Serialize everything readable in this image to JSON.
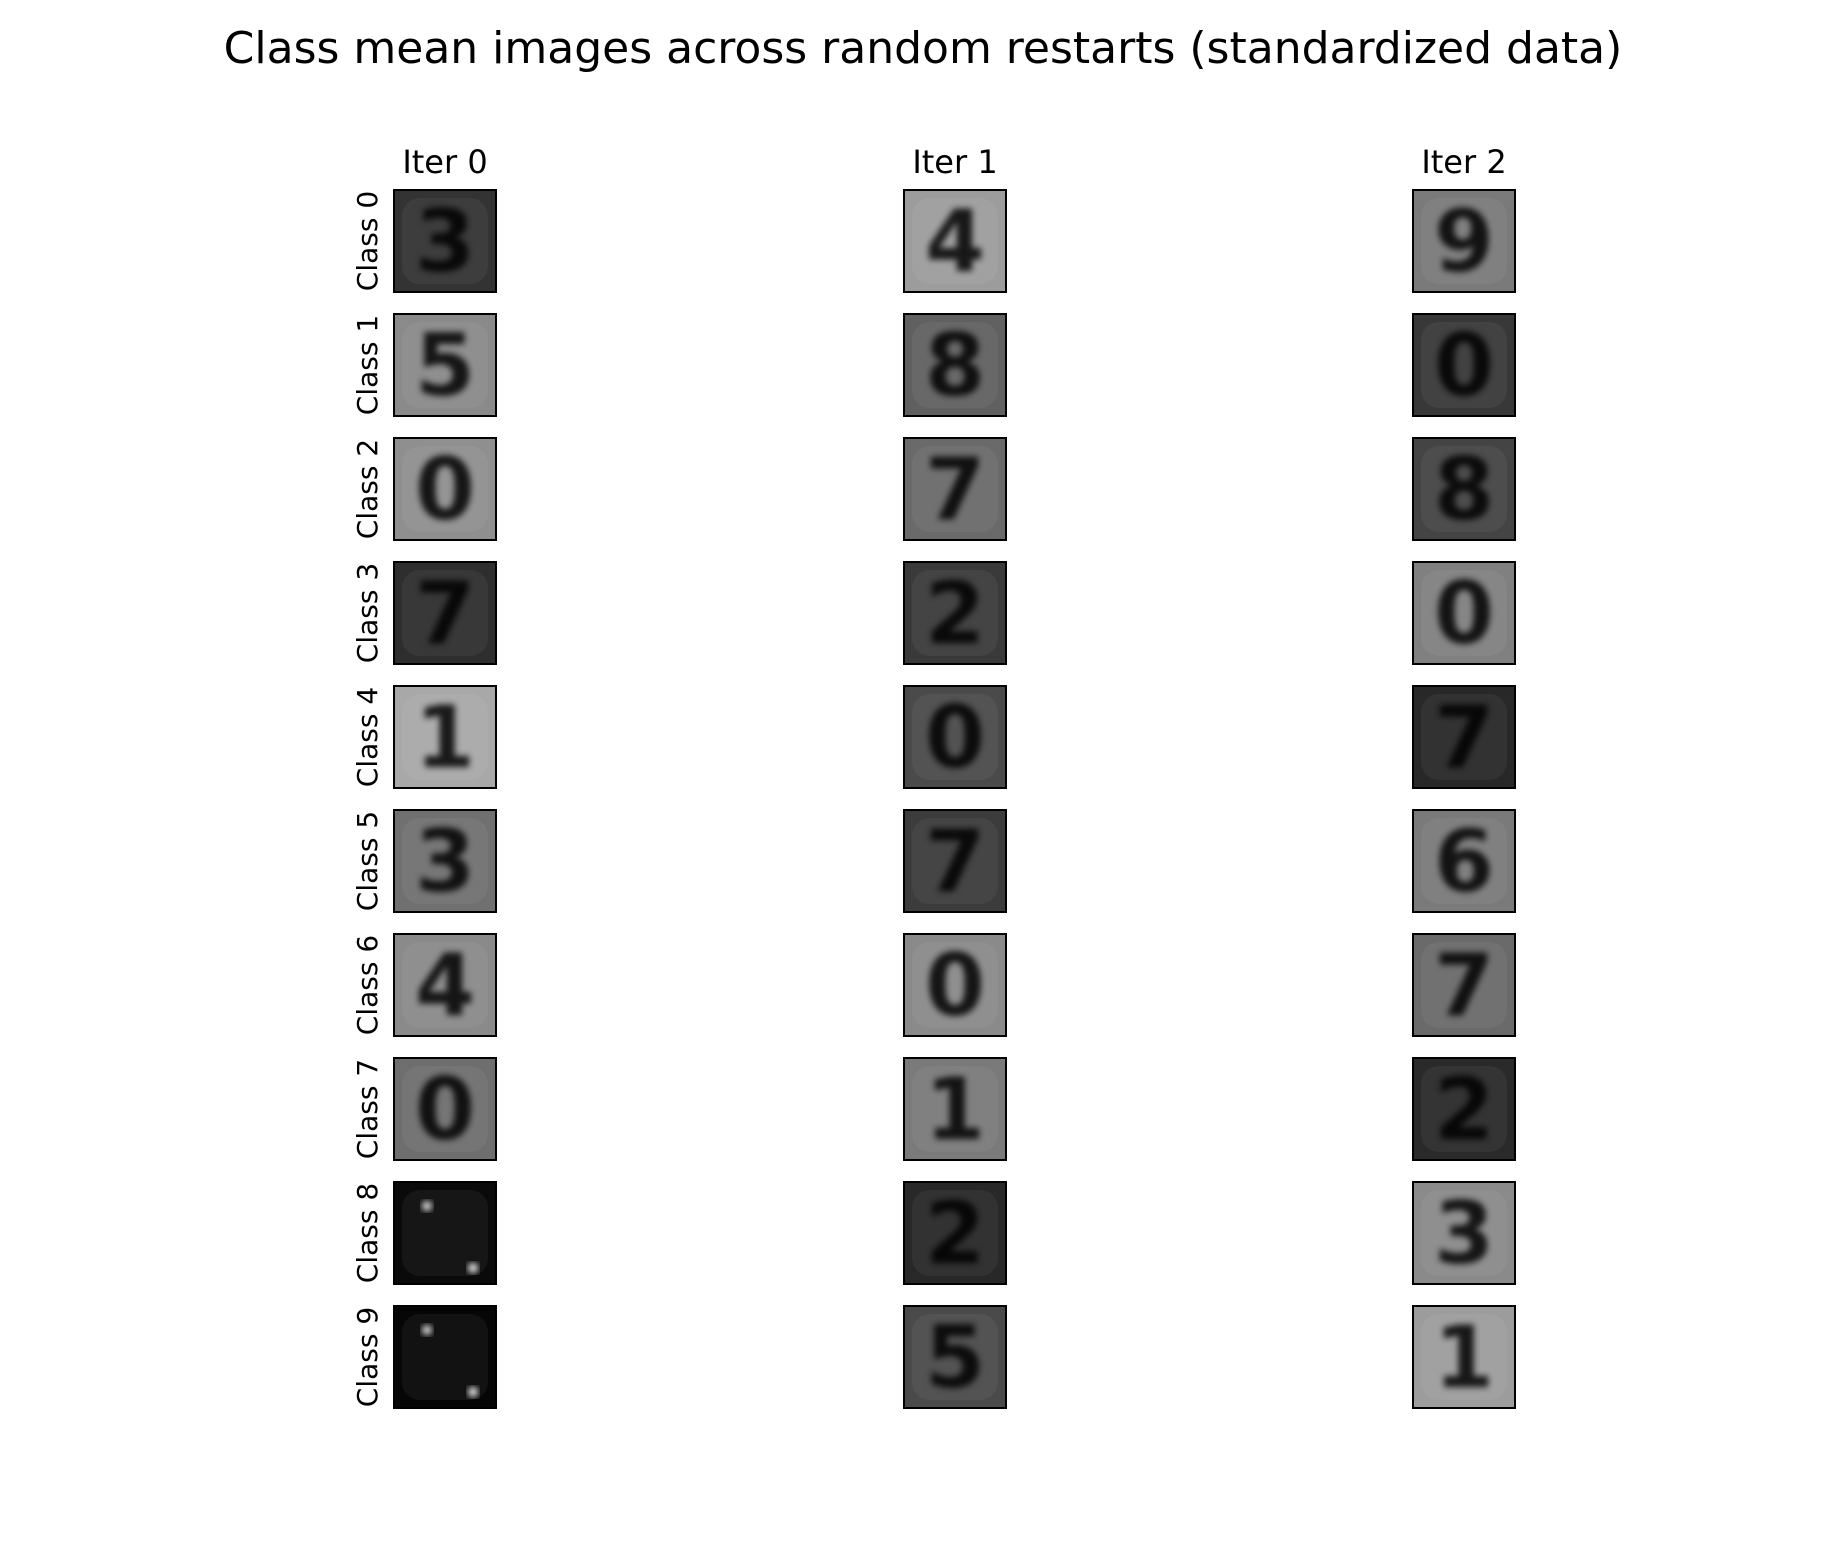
{
  "chart_data": {
    "type": "image_grid",
    "title": "Class mean images across random restarts (standardized data)",
    "columns": [
      {
        "label": "Iter 0",
        "digits": [
          "3",
          "5",
          "0",
          "7",
          "1",
          "3",
          "4",
          "0",
          "",
          ""
        ],
        "backgrounds": [
          "#333333",
          "#8a8a8a",
          "#8f8f8f",
          "#2e2e2e",
          "#a8a8a8",
          "#707070",
          "#8a8a8a",
          "#6e6e6e",
          "#0a0a0a",
          "#060606"
        ]
      },
      {
        "label": "Iter 1",
        "digits": [
          "4",
          "8",
          "7",
          "2",
          "0",
          "7",
          "0",
          "1",
          "2",
          "5"
        ],
        "backgrounds": [
          "#9c9c9c",
          "#606060",
          "#6a6a6a",
          "#3a3a3a",
          "#4a4a4a",
          "#3c3c3c",
          "#8a8a8a",
          "#7a7a7a",
          "#282828",
          "#4a4a4a"
        ]
      },
      {
        "label": "Iter 2",
        "digits": [
          "9",
          "0",
          "8",
          "0",
          "7",
          "6",
          "7",
          "2",
          "3",
          "1"
        ],
        "backgrounds": [
          "#7a7a7a",
          "#383838",
          "#444444",
          "#808080",
          "#282828",
          "#7a7a7a",
          "#6a6a6a",
          "#2a2a2a",
          "#8a8a8a",
          "#9c9c9c"
        ]
      }
    ],
    "row_labels": [
      "Class 0",
      "Class 1",
      "Class 2",
      "Class 3",
      "Class 4",
      "Class 5",
      "Class 6",
      "Class 7",
      "Class 8",
      "Class 9"
    ],
    "colormap": "gray"
  }
}
